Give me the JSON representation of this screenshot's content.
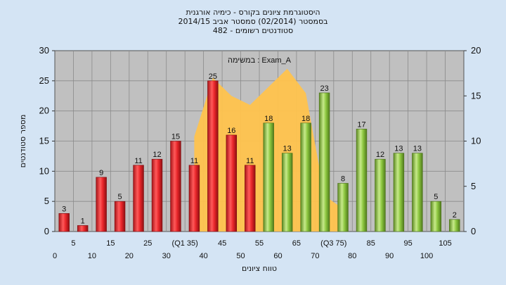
{
  "title_lines": [
    "היסטוגרמת ציונים בקורס - כימיה אורגנית",
    "בסמסטר  (02/2014)  סמסטר אביב 2014/15",
    "סטודנטים רשומים - 482"
  ],
  "chart_data": {
    "type": "bar",
    "xlabel": "טווח ציונים",
    "ylabel": "מספר סטודנטים",
    "annotation": "במשימה : Exam_A",
    "ylim": [
      0,
      30
    ],
    "y_ticks": [
      0,
      5,
      10,
      15,
      20,
      25,
      30
    ],
    "y2lim": [
      0,
      20
    ],
    "y2_ticks": [
      0,
      5,
      10,
      15,
      20
    ],
    "grid": true,
    "categories": [
      "0",
      "5",
      "10",
      "15",
      "20",
      "25",
      "30",
      "(Q1 35)",
      "40",
      "45",
      "50",
      "55",
      "60",
      "65",
      "70",
      "(Q3 75)",
      "80",
      "85",
      "90",
      "95",
      "100",
      "105"
    ],
    "values": [
      3,
      1,
      9,
      5,
      11,
      12,
      15,
      11,
      25,
      16,
      11,
      18,
      13,
      18,
      23,
      8,
      17,
      12,
      13,
      13,
      5,
      2
    ],
    "bar_colors": [
      "red",
      "red",
      "red",
      "red",
      "red",
      "red",
      "red",
      "red",
      "red",
      "red",
      "red",
      "green",
      "green",
      "green",
      "green",
      "green",
      "green",
      "green",
      "green",
      "green",
      "green",
      "green"
    ],
    "area_series": {
      "x": [
        "(Q1 35)",
        "40",
        "45",
        "50",
        "55",
        "60",
        "65",
        "70",
        "(Q3 75)"
      ],
      "values": [
        10.5,
        17,
        15,
        14,
        16,
        18,
        15.3,
        4,
        2.5
      ],
      "axis": "secondary",
      "color": "#ffc34d"
    },
    "colors": {
      "red": "#e8262a",
      "green": "#8cc63f",
      "plot_bg": "#c0c0c0",
      "page_bg": "#d4e4f4"
    }
  }
}
